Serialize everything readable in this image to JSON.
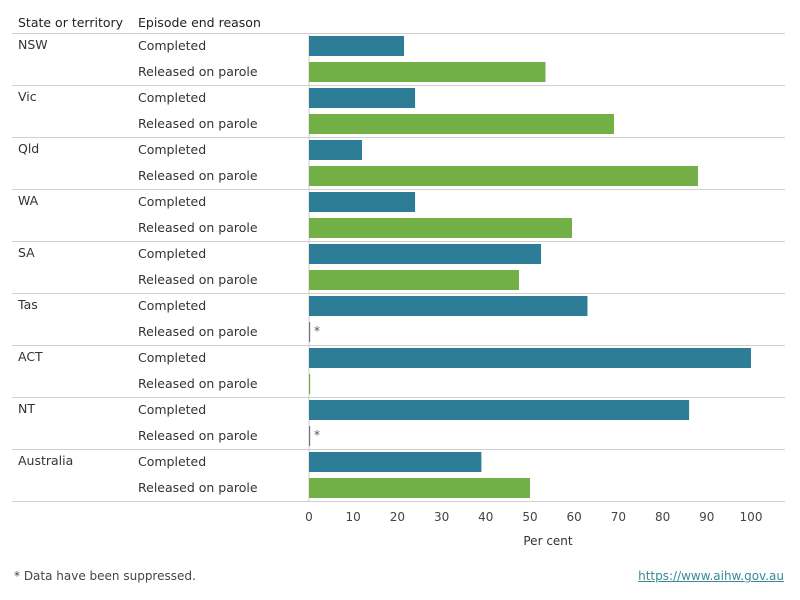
{
  "header": {
    "state_col": "State or territory",
    "reason_col": "Episode end reason"
  },
  "chart_data": {
    "type": "bar",
    "orientation": "horizontal",
    "xlabel": "Per cent",
    "xlim": [
      0,
      100
    ],
    "xticks": [
      "0",
      "10",
      "20",
      "30",
      "40",
      "50",
      "60",
      "70",
      "80",
      "90",
      "100"
    ],
    "colors": {
      "Completed": "#2e7d96",
      "Released on parole": "#72b045"
    },
    "groups": [
      {
        "state": "NSW",
        "rows": [
          {
            "reason": "Completed",
            "value": 21.5
          },
          {
            "reason": "Released on parole",
            "value": 53.5
          }
        ]
      },
      {
        "state": "Vic",
        "rows": [
          {
            "reason": "Completed",
            "value": 24
          },
          {
            "reason": "Released on parole",
            "value": 69
          }
        ]
      },
      {
        "state": "Qld",
        "rows": [
          {
            "reason": "Completed",
            "value": 12
          },
          {
            "reason": "Released on parole",
            "value": 88
          }
        ]
      },
      {
        "state": "WA",
        "rows": [
          {
            "reason": "Completed",
            "value": 24
          },
          {
            "reason": "Released on parole",
            "value": 59.5
          }
        ]
      },
      {
        "state": "SA",
        "rows": [
          {
            "reason": "Completed",
            "value": 52.5
          },
          {
            "reason": "Released on parole",
            "value": 47.5
          }
        ]
      },
      {
        "state": "Tas",
        "rows": [
          {
            "reason": "Completed",
            "value": 63
          },
          {
            "reason": "Released on parole",
            "value": null,
            "note": "*"
          }
        ]
      },
      {
        "state": "ACT",
        "rows": [
          {
            "reason": "Completed",
            "value": 100
          },
          {
            "reason": "Released on parole",
            "value": 0
          }
        ]
      },
      {
        "state": "NT",
        "rows": [
          {
            "reason": "Completed",
            "value": 86
          },
          {
            "reason": "Released on parole",
            "value": null,
            "note": "*"
          }
        ]
      },
      {
        "state": "Australia",
        "rows": [
          {
            "reason": "Completed",
            "value": 39
          },
          {
            "reason": "Released on parole",
            "value": 50
          }
        ]
      }
    ]
  },
  "footnote": "* Data have been suppressed.",
  "source_url": "https://www.aihw.gov.au"
}
